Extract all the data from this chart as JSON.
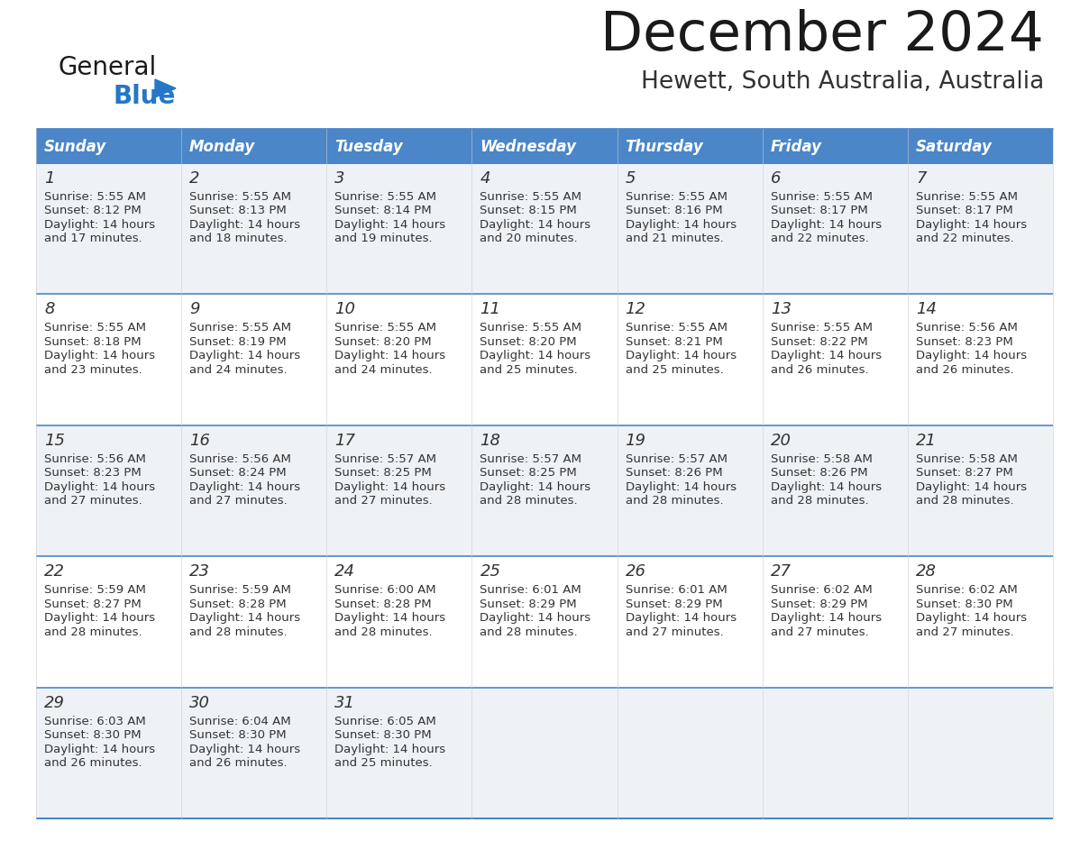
{
  "title": "December 2024",
  "subtitle": "Hewett, South Australia, Australia",
  "days_of_week": [
    "Sunday",
    "Monday",
    "Tuesday",
    "Wednesday",
    "Thursday",
    "Friday",
    "Saturday"
  ],
  "header_bg": "#4a86c8",
  "header_text": "#ffffff",
  "border_color": "#4a86c8",
  "text_color": "#333333",
  "calendar_data": [
    [
      {
        "day": 1,
        "sunrise": "5:55 AM",
        "sunset": "8:12 PM",
        "daylight_line1": "Daylight: 14 hours",
        "daylight_line2": "and 17 minutes."
      },
      {
        "day": 2,
        "sunrise": "5:55 AM",
        "sunset": "8:13 PM",
        "daylight_line1": "Daylight: 14 hours",
        "daylight_line2": "and 18 minutes."
      },
      {
        "day": 3,
        "sunrise": "5:55 AM",
        "sunset": "8:14 PM",
        "daylight_line1": "Daylight: 14 hours",
        "daylight_line2": "and 19 minutes."
      },
      {
        "day": 4,
        "sunrise": "5:55 AM",
        "sunset": "8:15 PM",
        "daylight_line1": "Daylight: 14 hours",
        "daylight_line2": "and 20 minutes."
      },
      {
        "day": 5,
        "sunrise": "5:55 AM",
        "sunset": "8:16 PM",
        "daylight_line1": "Daylight: 14 hours",
        "daylight_line2": "and 21 minutes."
      },
      {
        "day": 6,
        "sunrise": "5:55 AM",
        "sunset": "8:17 PM",
        "daylight_line1": "Daylight: 14 hours",
        "daylight_line2": "and 22 minutes."
      },
      {
        "day": 7,
        "sunrise": "5:55 AM",
        "sunset": "8:17 PM",
        "daylight_line1": "Daylight: 14 hours",
        "daylight_line2": "and 22 minutes."
      }
    ],
    [
      {
        "day": 8,
        "sunrise": "5:55 AM",
        "sunset": "8:18 PM",
        "daylight_line1": "Daylight: 14 hours",
        "daylight_line2": "and 23 minutes."
      },
      {
        "day": 9,
        "sunrise": "5:55 AM",
        "sunset": "8:19 PM",
        "daylight_line1": "Daylight: 14 hours",
        "daylight_line2": "and 24 minutes."
      },
      {
        "day": 10,
        "sunrise": "5:55 AM",
        "sunset": "8:20 PM",
        "daylight_line1": "Daylight: 14 hours",
        "daylight_line2": "and 24 minutes."
      },
      {
        "day": 11,
        "sunrise": "5:55 AM",
        "sunset": "8:20 PM",
        "daylight_line1": "Daylight: 14 hours",
        "daylight_line2": "and 25 minutes."
      },
      {
        "day": 12,
        "sunrise": "5:55 AM",
        "sunset": "8:21 PM",
        "daylight_line1": "Daylight: 14 hours",
        "daylight_line2": "and 25 minutes."
      },
      {
        "day": 13,
        "sunrise": "5:55 AM",
        "sunset": "8:22 PM",
        "daylight_line1": "Daylight: 14 hours",
        "daylight_line2": "and 26 minutes."
      },
      {
        "day": 14,
        "sunrise": "5:56 AM",
        "sunset": "8:23 PM",
        "daylight_line1": "Daylight: 14 hours",
        "daylight_line2": "and 26 minutes."
      }
    ],
    [
      {
        "day": 15,
        "sunrise": "5:56 AM",
        "sunset": "8:23 PM",
        "daylight_line1": "Daylight: 14 hours",
        "daylight_line2": "and 27 minutes."
      },
      {
        "day": 16,
        "sunrise": "5:56 AM",
        "sunset": "8:24 PM",
        "daylight_line1": "Daylight: 14 hours",
        "daylight_line2": "and 27 minutes."
      },
      {
        "day": 17,
        "sunrise": "5:57 AM",
        "sunset": "8:25 PM",
        "daylight_line1": "Daylight: 14 hours",
        "daylight_line2": "and 27 minutes."
      },
      {
        "day": 18,
        "sunrise": "5:57 AM",
        "sunset": "8:25 PM",
        "daylight_line1": "Daylight: 14 hours",
        "daylight_line2": "and 28 minutes."
      },
      {
        "day": 19,
        "sunrise": "5:57 AM",
        "sunset": "8:26 PM",
        "daylight_line1": "Daylight: 14 hours",
        "daylight_line2": "and 28 minutes."
      },
      {
        "day": 20,
        "sunrise": "5:58 AM",
        "sunset": "8:26 PM",
        "daylight_line1": "Daylight: 14 hours",
        "daylight_line2": "and 28 minutes."
      },
      {
        "day": 21,
        "sunrise": "5:58 AM",
        "sunset": "8:27 PM",
        "daylight_line1": "Daylight: 14 hours",
        "daylight_line2": "and 28 minutes."
      }
    ],
    [
      {
        "day": 22,
        "sunrise": "5:59 AM",
        "sunset": "8:27 PM",
        "daylight_line1": "Daylight: 14 hours",
        "daylight_line2": "and 28 minutes."
      },
      {
        "day": 23,
        "sunrise": "5:59 AM",
        "sunset": "8:28 PM",
        "daylight_line1": "Daylight: 14 hours",
        "daylight_line2": "and 28 minutes."
      },
      {
        "day": 24,
        "sunrise": "6:00 AM",
        "sunset": "8:28 PM",
        "daylight_line1": "Daylight: 14 hours",
        "daylight_line2": "and 28 minutes."
      },
      {
        "day": 25,
        "sunrise": "6:01 AM",
        "sunset": "8:29 PM",
        "daylight_line1": "Daylight: 14 hours",
        "daylight_line2": "and 28 minutes."
      },
      {
        "day": 26,
        "sunrise": "6:01 AM",
        "sunset": "8:29 PM",
        "daylight_line1": "Daylight: 14 hours",
        "daylight_line2": "and 27 minutes."
      },
      {
        "day": 27,
        "sunrise": "6:02 AM",
        "sunset": "8:29 PM",
        "daylight_line1": "Daylight: 14 hours",
        "daylight_line2": "and 27 minutes."
      },
      {
        "day": 28,
        "sunrise": "6:02 AM",
        "sunset": "8:30 PM",
        "daylight_line1": "Daylight: 14 hours",
        "daylight_line2": "and 27 minutes."
      }
    ],
    [
      {
        "day": 29,
        "sunrise": "6:03 AM",
        "sunset": "8:30 PM",
        "daylight_line1": "Daylight: 14 hours",
        "daylight_line2": "and 26 minutes."
      },
      {
        "day": 30,
        "sunrise": "6:04 AM",
        "sunset": "8:30 PM",
        "daylight_line1": "Daylight: 14 hours",
        "daylight_line2": "and 26 minutes."
      },
      {
        "day": 31,
        "sunrise": "6:05 AM",
        "sunset": "8:30 PM",
        "daylight_line1": "Daylight: 14 hours",
        "daylight_line2": "and 25 minutes."
      },
      null,
      null,
      null,
      null
    ]
  ],
  "logo_general_color": "#1a1a1a",
  "logo_blue_color": "#2577c8",
  "logo_triangle_color": "#2577c8",
  "title_color": "#1a1a1a",
  "subtitle_color": "#333333"
}
